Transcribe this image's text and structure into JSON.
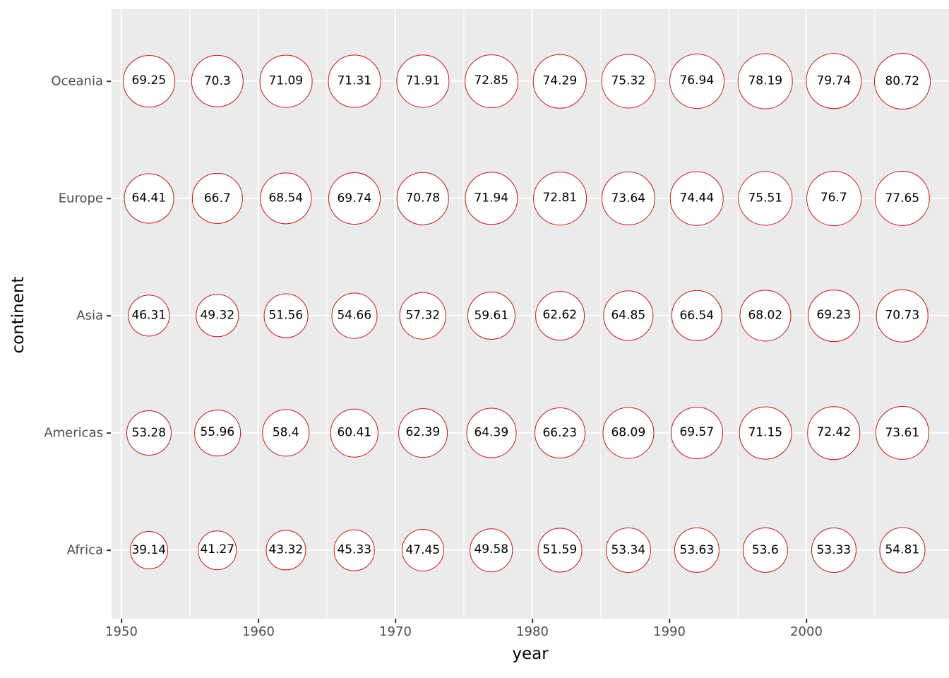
{
  "chart_data": {
    "type": "scatter",
    "title": "",
    "xlabel": "year",
    "ylabel": "continent",
    "legend": "none",
    "grid": true,
    "panel_bg": "#ebebeb",
    "gridline_color": "#ffffff",
    "point_fill": "#ffffff",
    "point_stroke": "#cc1414",
    "tick_label_color": "#4d4d4d",
    "axis_title_color": "#000000",
    "x_axis": {
      "ticks": [
        1950,
        1960,
        1970,
        1980,
        1990,
        2000
      ],
      "minor_ticks": [
        1955,
        1965,
        1975,
        1985,
        1995,
        2005
      ],
      "range": [
        1949.25,
        2009.75
      ]
    },
    "years": [
      1952,
      1957,
      1962,
      1967,
      1972,
      1977,
      1982,
      1987,
      1992,
      1997,
      2002,
      2007
    ],
    "size_domain": [
      39.14,
      80.72
    ],
    "size_encodes": "value (mean life expectancy)",
    "rows": [
      {
        "continent": "Oceania",
        "values": [
          69.25,
          70.3,
          71.09,
          71.31,
          71.91,
          72.85,
          74.29,
          75.32,
          76.94,
          78.19,
          79.74,
          80.72
        ]
      },
      {
        "continent": "Europe",
        "values": [
          64.41,
          66.7,
          68.54,
          69.74,
          70.78,
          71.94,
          72.81,
          73.64,
          74.44,
          75.51,
          76.7,
          77.65
        ]
      },
      {
        "continent": "Asia",
        "values": [
          46.31,
          49.32,
          51.56,
          54.66,
          57.32,
          59.61,
          62.62,
          64.85,
          66.54,
          68.02,
          69.23,
          70.73
        ]
      },
      {
        "continent": "Americas",
        "values": [
          53.28,
          55.96,
          58.4,
          60.41,
          62.39,
          64.39,
          66.23,
          68.09,
          69.57,
          71.15,
          72.42,
          73.61
        ]
      },
      {
        "continent": "Africa",
        "values": [
          39.14,
          41.27,
          43.32,
          45.33,
          47.45,
          49.58,
          51.59,
          53.34,
          53.63,
          53.6,
          53.33,
          54.81
        ]
      }
    ]
  }
}
